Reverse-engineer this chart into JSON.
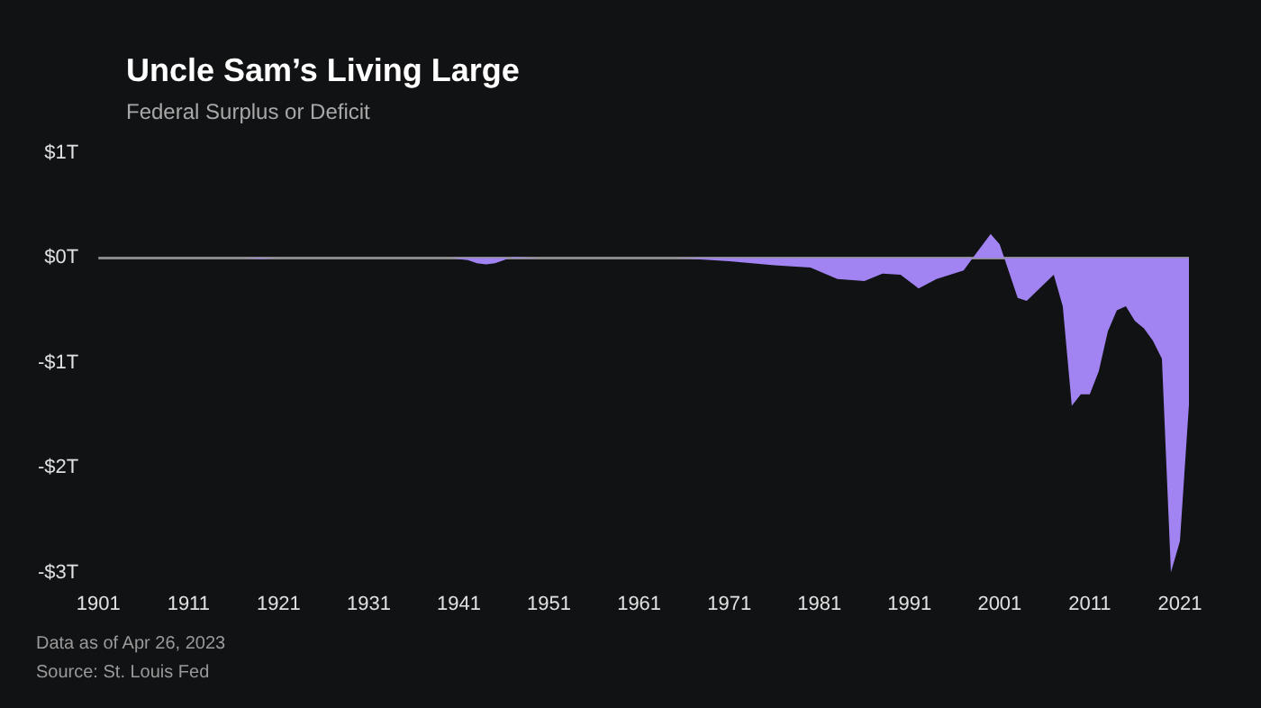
{
  "chart_data": {
    "type": "area",
    "title": "Uncle Sam’s Living Large",
    "subtitle": "Federal Surplus or Deficit",
    "annotations": [
      "Data as of Apr 26, 2023",
      "Source: St. Louis Fed"
    ],
    "x": [
      1901,
      1917,
      1919,
      1921,
      1940,
      1942,
      1943,
      1944,
      1945,
      1946,
      1947,
      1950,
      1960,
      1965,
      1971,
      1976,
      1980,
      1983,
      1986,
      1988,
      1990,
      1992,
      1994,
      1997,
      1998,
      2000,
      2001,
      2003,
      2004,
      2007,
      2008,
      2009,
      2010,
      2011,
      2012,
      2013,
      2014,
      2015,
      2016,
      2017,
      2018,
      2019,
      2020,
      2021,
      2022
    ],
    "series": [
      {
        "color": "#a184f2",
        "values": [
          0,
          0,
          -0.01,
          0,
          0,
          -0.02,
          -0.05,
          -0.06,
          -0.05,
          -0.02,
          0.01,
          0,
          0,
          0,
          -0.03,
          -0.07,
          -0.09,
          -0.2,
          -0.22,
          -0.15,
          -0.16,
          -0.29,
          -0.2,
          -0.12,
          0,
          0.23,
          0.13,
          -0.38,
          -0.41,
          -0.16,
          -0.46,
          -1.41,
          -1.3,
          -1.3,
          -1.08,
          -0.7,
          -0.5,
          -0.46,
          -0.6,
          -0.67,
          -0.79,
          -0.96,
          -3,
          -2.7,
          -1.4
        ]
      }
    ],
    "xlim": [
      1901,
      2022
    ],
    "xticks": [
      1901,
      1911,
      1921,
      1931,
      1941,
      1951,
      1961,
      1971,
      1981,
      1991,
      2001,
      2011,
      2021
    ],
    "ylim": [
      -3,
      1
    ],
    "yticks": [
      {
        "value": 1,
        "label": "$1T"
      },
      {
        "value": 0,
        "label": "$0T"
      },
      {
        "value": -1,
        "label": "-$1T"
      },
      {
        "value": -2,
        "label": "-$2T"
      },
      {
        "value": -3,
        "label": "-$3T"
      }
    ],
    "ref_lines": [
      {
        "axis": "y",
        "value": 0,
        "color": "#8a8a8a"
      }
    ],
    "grid": false,
    "legend": false
  }
}
